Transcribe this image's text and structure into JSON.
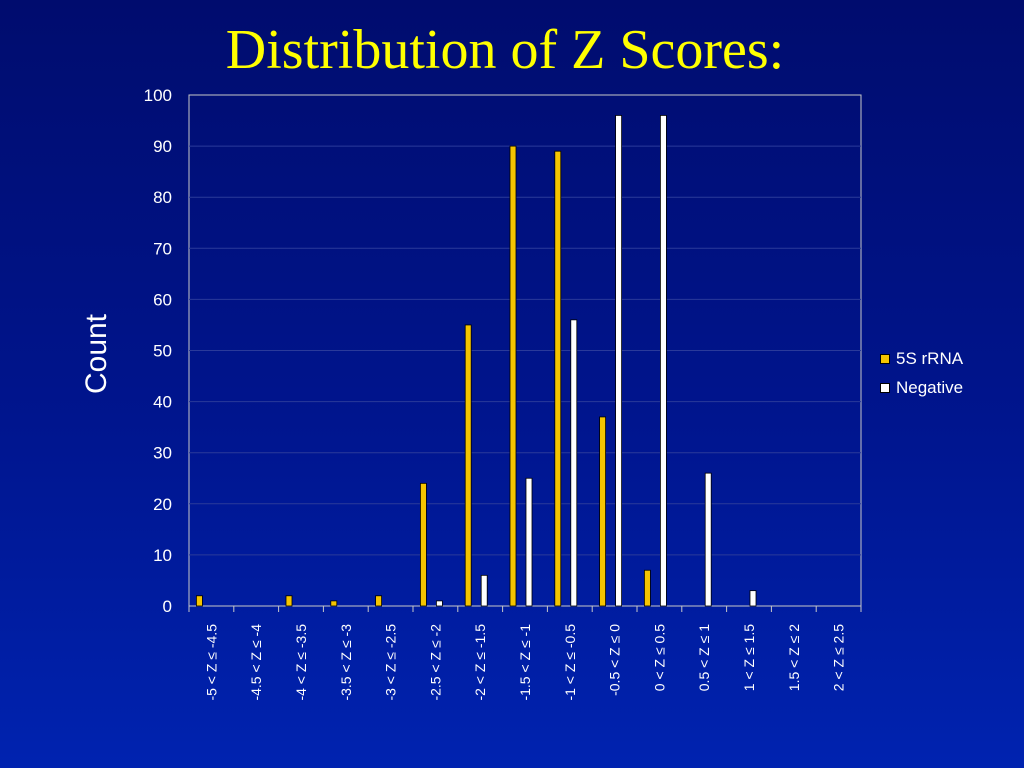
{
  "slide": {
    "title": "Distribution of Z Scores:"
  },
  "colors": {
    "background": "#00158e",
    "title": "#ffff00",
    "series_5s": "#f5c400",
    "series_negative": "#ffffff"
  },
  "chart_data": {
    "type": "bar",
    "title": "",
    "xlabel": "",
    "ylabel": "Count",
    "ylim": [
      0,
      100
    ],
    "yticks": [
      0,
      10,
      20,
      30,
      40,
      50,
      60,
      70,
      80,
      90,
      100
    ],
    "grid": true,
    "legend_position": "right",
    "categories": [
      "-5 < Z ≤ -4.5",
      "-4.5 < Z ≤ -4",
      "-4 < Z ≤ -3.5",
      "-3.5 < Z ≤ -3",
      "-3 < Z ≤ -2.5",
      "-2.5 < Z ≤ -2",
      "-2 < Z ≤ -1.5",
      "-1.5 < Z ≤ -1",
      "-1 < Z ≤ -0.5",
      "-0.5 < Z ≤ 0",
      "0 < Z ≤ 0.5",
      "0.5 < Z ≤ 1",
      "1 < Z ≤ 1.5",
      "1.5 < Z ≤ 2",
      "2 < Z ≤ 2.5"
    ],
    "series": [
      {
        "name": "5S rRNA",
        "color": "#f5c400",
        "values": [
          2,
          0,
          2,
          1,
          2,
          24,
          55,
          90,
          89,
          37,
          7,
          0,
          0,
          0,
          0
        ]
      },
      {
        "name": "Negative",
        "color": "#ffffff",
        "values": [
          0,
          0,
          0,
          0,
          0,
          1,
          6,
          25,
          56,
          96,
          96,
          26,
          3,
          0,
          0
        ]
      }
    ]
  }
}
